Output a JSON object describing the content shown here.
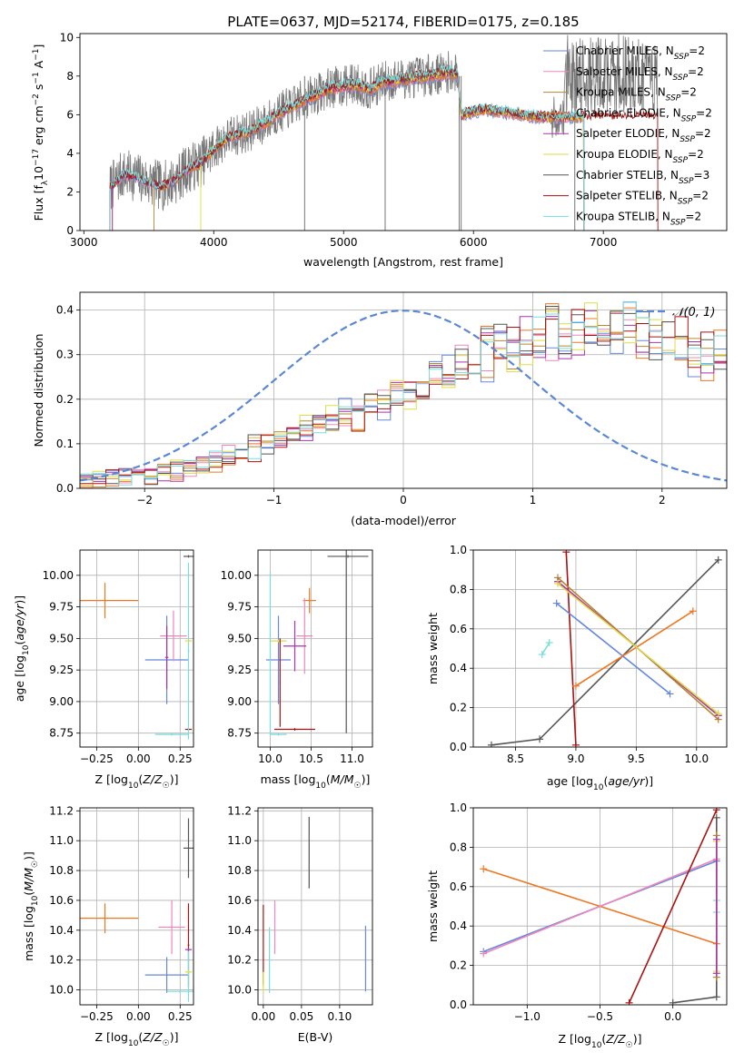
{
  "figure_title": "PLATE=0637, MJD=52174, FIBERID=0175, z=0.185",
  "models": [
    {
      "name": "Chabrier MILES",
      "nssp": "2",
      "color": "#6688dd"
    },
    {
      "name": "Salpeter MILES",
      "nssp": "2",
      "color": "#ee88bb"
    },
    {
      "name": "Kroupa MILES",
      "nssp": "2",
      "color": "#b8862e"
    },
    {
      "name": "Chabrier ELODIE",
      "nssp": "2",
      "color": "#ee7722"
    },
    {
      "name": "Salpeter ELODIE",
      "nssp": "2",
      "color": "#aa33aa"
    },
    {
      "name": "Kroupa ELODIE",
      "nssp": "2",
      "color": "#dddd44"
    },
    {
      "name": "Chabrier STELIB",
      "nssp": "3",
      "color": "#555555"
    },
    {
      "name": "Salpeter STELIB",
      "nssp": "2",
      "color": "#aa1111"
    },
    {
      "name": "Kroupa STELIB",
      "nssp": "2",
      "color": "#77dddd"
    }
  ],
  "chart_data": [
    {
      "id": "spectrum",
      "type": "line",
      "xlabel": "wavelength [Angstrom, rest frame]",
      "ylabel": "Flux [f_λ 10^-17 erg cm^-2 s^-1 A^-1]",
      "xlim": [
        2970,
        7950
      ],
      "ylim": [
        0,
        10.2
      ],
      "xticks": [
        3000,
        4000,
        5000,
        6000,
        7000
      ],
      "yticks": [
        0,
        2,
        4,
        6,
        8,
        10
      ],
      "legend_position": "top-right",
      "data_color": "#777777",
      "model_profile": [
        [
          3200,
          2.2
        ],
        [
          3300,
          2.9
        ],
        [
          3400,
          2.8
        ],
        [
          3500,
          2.5
        ],
        [
          3600,
          2.3
        ],
        [
          3700,
          2.6
        ],
        [
          3800,
          3.2
        ],
        [
          3900,
          3.5
        ],
        [
          4000,
          4.2
        ],
        [
          4100,
          4.8
        ],
        [
          4200,
          5.0
        ],
        [
          4300,
          5.2
        ],
        [
          4400,
          5.6
        ],
        [
          4500,
          6.1
        ],
        [
          4600,
          6.4
        ],
        [
          4700,
          6.8
        ],
        [
          4800,
          7.1
        ],
        [
          4900,
          7.4
        ],
        [
          5000,
          7.5
        ],
        [
          5100,
          7.6
        ],
        [
          5200,
          7.3
        ],
        [
          5300,
          7.7
        ],
        [
          5400,
          7.8
        ],
        [
          5500,
          7.9
        ],
        [
          5600,
          8.0
        ],
        [
          5700,
          8.1
        ],
        [
          5800,
          8.2
        ],
        [
          5880,
          8.1
        ],
        [
          5905,
          6.0
        ],
        [
          6000,
          6.2
        ],
        [
          6100,
          6.3
        ],
        [
          6200,
          6.2
        ],
        [
          6300,
          6.1
        ],
        [
          6400,
          6.0
        ],
        [
          6500,
          5.9
        ],
        [
          6600,
          5.9
        ],
        [
          6700,
          5.9
        ],
        [
          6800,
          5.9
        ]
      ],
      "model_ranges": [
        [
          3200,
          6850
        ],
        [
          3200,
          6850
        ],
        [
          3540,
          6850
        ],
        [
          3220,
          6850
        ],
        [
          3220,
          6850
        ],
        [
          3900,
          6850
        ],
        [
          3200,
          6850
        ],
        [
          3200,
          7420
        ],
        [
          3200,
          6850
        ]
      ]
    },
    {
      "id": "residuals",
      "type": "step",
      "xlabel": "(data-model)/error",
      "ylabel": "Normed distribution",
      "xlim": [
        -2.5,
        2.5
      ],
      "ylim": [
        0,
        0.44
      ],
      "xticks": [
        -2,
        -1,
        0,
        1,
        2
      ],
      "yticks": [
        0.0,
        0.1,
        0.2,
        0.3,
        0.4
      ],
      "gaussian_label": "𝒩(0, 1)",
      "gaussian_color": "#5a87d6",
      "bin_width": 0.1,
      "base_shape": [
        0.02,
        0.022,
        0.024,
        0.026,
        0.028,
        0.03,
        0.035,
        0.04,
        0.045,
        0.055,
        0.06,
        0.07,
        0.08,
        0.09,
        0.1,
        0.11,
        0.12,
        0.13,
        0.14,
        0.15,
        0.16,
        0.17,
        0.18,
        0.19,
        0.2,
        0.21,
        0.22,
        0.24,
        0.25,
        0.27,
        0.28,
        0.3,
        0.31,
        0.32,
        0.33,
        0.34,
        0.35,
        0.35,
        0.355,
        0.36,
        0.36,
        0.355,
        0.35,
        0.345,
        0.34,
        0.33,
        0.32,
        0.31,
        0.3,
        0.3,
        0.29,
        0.285,
        0.28,
        0.275,
        0.27,
        0.265,
        0.26,
        0.25,
        0.24,
        0.23,
        0.22,
        0.215,
        0.21,
        0.205,
        0.2,
        0.19,
        0.18,
        0.17,
        0.16,
        0.15
      ]
    },
    {
      "id": "age_vs_Z",
      "type": "errorbar",
      "xlabel": "Z [log10(Z/Z☉)]",
      "ylabel": "age  [log10(age/yr)]",
      "xlim": [
        -0.35,
        0.33
      ],
      "ylim": [
        8.64,
        10.2
      ],
      "xticks": [
        -0.25,
        0.0,
        0.25
      ],
      "xticklabels": [
        "−0.25",
        "0.00",
        "0.25"
      ],
      "yticks": [
        8.75,
        9.0,
        9.25,
        9.5,
        9.75,
        10.0
      ],
      "yticklabels": [
        "8.75",
        "9.00",
        "9.25",
        "9.50",
        "9.75",
        "10.00"
      ],
      "points": [
        {
          "model": 3,
          "x": -0.2,
          "y": 9.8,
          "xerr": 0.2,
          "yerr": 0.14
        },
        {
          "model": 0,
          "x": 0.17,
          "y": 9.33,
          "xerr": 0.13,
          "yerr": 0.35
        },
        {
          "model": 1,
          "x": 0.21,
          "y": 9.52,
          "xerr": 0.08,
          "yerr": 0.2
        },
        {
          "model": 4,
          "x": 0.17,
          "y": 9.35,
          "xerr": 0.01,
          "yerr": 0.25
        },
        {
          "model": 6,
          "x": 0.3,
          "y": 10.15,
          "xerr": 0.03,
          "yerr": 0.01
        },
        {
          "model": 7,
          "x": 0.3,
          "y": 8.78,
          "xerr": 0.02,
          "yerr": 0.01
        },
        {
          "model": 8,
          "x": 0.2,
          "y": 8.74,
          "xerr": 0.1,
          "yerr": 0.01
        },
        {
          "model": 8,
          "x": 0.3,
          "y": 9.4,
          "xerr": 0.005,
          "yerr": 0.7
        },
        {
          "model": 5,
          "x": 0.3,
          "y": 9.48,
          "xerr": 0.02,
          "yerr": 0.01
        }
      ]
    },
    {
      "id": "age_vs_mass",
      "type": "errorbar",
      "xlabel": "mass [log10(M/M☉)]",
      "ylabel": "",
      "xlim": [
        9.85,
        11.25
      ],
      "ylim": [
        8.64,
        10.2
      ],
      "xticks": [
        10.0,
        10.5,
        11.0
      ],
      "xticklabels": [
        "10.0",
        "10.5",
        "11.0"
      ],
      "yticks": [
        8.75,
        9.0,
        9.25,
        9.5,
        9.75,
        10.0
      ],
      "yticklabels": [
        "8.75",
        "9.00",
        "9.25",
        "9.50",
        "9.75",
        "10.00"
      ],
      "points": [
        {
          "model": 6,
          "x": 10.95,
          "y": 10.15,
          "xerr": 0.25,
          "yerr": 0.01
        },
        {
          "model": 6,
          "x": 10.93,
          "y": 9.5,
          "xerr": 0.005,
          "yerr": 0.75
        },
        {
          "model": 3,
          "x": 10.48,
          "y": 9.8,
          "xerr": 0.08,
          "yerr": 0.1
        },
        {
          "model": 0,
          "x": 10.1,
          "y": 9.33,
          "xerr": 0.15,
          "yerr": 0.35
        },
        {
          "model": 1,
          "x": 10.42,
          "y": 9.52,
          "xerr": 0.1,
          "yerr": 0.3
        },
        {
          "model": 4,
          "x": 10.3,
          "y": 9.44,
          "xerr": 0.14,
          "yerr": 0.2
        },
        {
          "model": 5,
          "x": 10.1,
          "y": 9.48,
          "xerr": 0.1,
          "yerr": 0.01
        },
        {
          "model": 7,
          "x": 10.3,
          "y": 8.78,
          "xerr": 0.25,
          "yerr": 0.01
        },
        {
          "model": 7,
          "x": 10.12,
          "y": 9.15,
          "xerr": 0.005,
          "yerr": 0.35
        },
        {
          "model": 8,
          "x": 10.1,
          "y": 8.74,
          "xerr": 0.1,
          "yerr": 0.01
        },
        {
          "model": 8,
          "x": 10.0,
          "y": 9.38,
          "xerr": 0.005,
          "yerr": 0.64
        }
      ]
    },
    {
      "id": "weight_vs_age",
      "type": "line",
      "xlabel": "age  [log10(age/yr)]",
      "ylabel": "mass weight",
      "xlim": [
        8.15,
        10.25
      ],
      "ylim": [
        0,
        1
      ],
      "xticks": [
        8.5,
        9.0,
        9.5,
        10.0
      ],
      "xticklabels": [
        "8.5",
        "9.0",
        "9.5",
        "10.0"
      ],
      "yticks": [
        0.0,
        0.2,
        0.4,
        0.6,
        0.8,
        1.0
      ],
      "yticklabels": [
        "0.0",
        "0.2",
        "0.4",
        "0.6",
        "0.8",
        "1.0"
      ],
      "series": [
        {
          "model": 6,
          "x": [
            8.3,
            8.7,
            10.18
          ],
          "y": [
            0.01,
            0.04,
            0.95
          ]
        },
        {
          "model": 7,
          "x": [
            8.92,
            9.0
          ],
          "y": [
            0.99,
            0.01
          ]
        },
        {
          "model": 0,
          "x": [
            8.84,
            9.78
          ],
          "y": [
            0.73,
            0.27
          ]
        },
        {
          "model": 3,
          "x": [
            9.0,
            9.97
          ],
          "y": [
            0.31,
            0.69
          ]
        },
        {
          "model": 1,
          "x": [
            8.85,
            10.18
          ],
          "y": [
            0.84,
            0.16
          ]
        },
        {
          "model": 2,
          "x": [
            8.85,
            10.18
          ],
          "y": [
            0.86,
            0.14
          ]
        },
        {
          "model": 4,
          "x": [
            8.85,
            10.18
          ],
          "y": [
            0.84,
            0.16
          ]
        },
        {
          "model": 5,
          "x": [
            8.85,
            10.18
          ],
          "y": [
            0.83,
            0.17
          ]
        },
        {
          "model": 8,
          "x": [
            8.72,
            8.78
          ],
          "y": [
            0.47,
            0.53
          ]
        }
      ]
    },
    {
      "id": "mass_vs_Z",
      "type": "errorbar",
      "xlabel": "Z [log10(Z/Z☉)]",
      "ylabel": "mass [log10(M/M☉)]",
      "xlim": [
        -0.35,
        0.33
      ],
      "ylim": [
        9.9,
        11.22
      ],
      "xticks": [
        -0.25,
        0.0,
        0.25
      ],
      "xticklabels": [
        "−0.25",
        "0.00",
        "0.25"
      ],
      "yticks": [
        10.0,
        10.2,
        10.4,
        10.6,
        10.8,
        11.0,
        11.2
      ],
      "yticklabels": [
        "10.0",
        "10.2",
        "10.4",
        "10.6",
        "10.8",
        "11.0",
        "11.2"
      ],
      "points": [
        {
          "model": 3,
          "x": -0.2,
          "y": 10.48,
          "xerr": 0.2,
          "yerr": 0.1
        },
        {
          "model": 0,
          "x": 0.17,
          "y": 10.1,
          "xerr": 0.13,
          "yerr": 0.12
        },
        {
          "model": 1,
          "x": 0.2,
          "y": 10.42,
          "xerr": 0.08,
          "yerr": 0.18
        },
        {
          "model": 6,
          "x": 0.3,
          "y": 10.95,
          "xerr": 0.03,
          "yerr": 0.2
        },
        {
          "model": 7,
          "x": 0.3,
          "y": 10.3,
          "xerr": 0.005,
          "yerr": 0.28
        },
        {
          "model": 8,
          "x": 0.25,
          "y": 9.99,
          "xerr": 0.08,
          "yerr": 0.01
        },
        {
          "model": 8,
          "x": 0.3,
          "y": 10.1,
          "xerr": 0.005,
          "yerr": 0.18
        },
        {
          "model": 4,
          "x": 0.3,
          "y": 10.27,
          "xerr": 0.02,
          "yerr": 0.01
        },
        {
          "model": 5,
          "x": 0.3,
          "y": 10.12,
          "xerr": 0.02,
          "yerr": 0.01
        }
      ]
    },
    {
      "id": "mass_vs_ebv",
      "type": "errorbar",
      "xlabel": "E(B-V)",
      "ylabel": "",
      "xlim": [
        -0.007,
        0.143
      ],
      "ylim": [
        9.9,
        11.22
      ],
      "xticks": [
        0.0,
        0.05,
        0.1
      ],
      "xticklabels": [
        "0.00",
        "0.05",
        "0.10"
      ],
      "yticks": [
        10.0,
        10.2,
        10.4,
        10.6,
        10.8,
        11.0,
        11.2
      ],
      "yticklabels": [
        "10.0",
        "10.2",
        "10.4",
        "10.6",
        "10.8",
        "11.0",
        "11.2"
      ],
      "points": [
        {
          "model": 6,
          "x": 0.06,
          "y": 10.92,
          "xerr": 0.0,
          "yerr": 0.24
        },
        {
          "model": 0,
          "x": 0.134,
          "y": 10.21,
          "xerr": 0.0,
          "yerr": 0.22
        },
        {
          "model": 1,
          "x": 0.015,
          "y": 10.42,
          "xerr": 0.0,
          "yerr": 0.18
        },
        {
          "model": 8,
          "x": 0.008,
          "y": 10.2,
          "xerr": 0.0,
          "yerr": 0.22
        },
        {
          "model": 7,
          "x": 0.0,
          "y": 10.3,
          "xerr": 0.0,
          "yerr": 0.27
        },
        {
          "model": 5,
          "x": 0.0,
          "y": 10.05,
          "xerr": 0.0,
          "yerr": 0.07
        }
      ]
    },
    {
      "id": "weight_vs_Z",
      "type": "line",
      "xlabel": "Z [log10(Z/Z☉)]",
      "ylabel": "mass weight",
      "xlim": [
        -1.37,
        0.37
      ],
      "ylim": [
        0,
        1
      ],
      "xticks": [
        -1.0,
        -0.5,
        0.0
      ],
      "xticklabels": [
        "−1.0",
        "−0.5",
        "0.0"
      ],
      "yticks": [
        0.0,
        0.2,
        0.4,
        0.6,
        0.8,
        1.0
      ],
      "yticklabels": [
        "0.0",
        "0.2",
        "0.4",
        "0.6",
        "0.8",
        "1.0"
      ],
      "series": [
        {
          "model": 3,
          "x": [
            -1.3,
            0.3
          ],
          "y": [
            0.69,
            0.31
          ]
        },
        {
          "model": 0,
          "x": [
            -1.3,
            0.3
          ],
          "y": [
            0.27,
            0.73
          ]
        },
        {
          "model": 1,
          "x": [
            -1.3,
            0.3
          ],
          "y": [
            0.26,
            0.74
          ]
        },
        {
          "model": 7,
          "x": [
            -0.3,
            0.3
          ],
          "y": [
            0.01,
            0.99
          ]
        },
        {
          "model": 6,
          "x": [
            0.0,
            0.3,
            0.3
          ],
          "y": [
            0.01,
            0.04,
            0.95
          ]
        },
        {
          "model": 8,
          "x": [
            0.3,
            0.3
          ],
          "y": [
            0.47,
            0.53
          ]
        },
        {
          "model": 2,
          "x": [
            0.3,
            0.3
          ],
          "y": [
            0.14,
            0.86
          ]
        },
        {
          "model": 5,
          "x": [
            0.3,
            0.3
          ],
          "y": [
            0.17,
            0.83
          ]
        },
        {
          "model": 4,
          "x": [
            0.3,
            0.3
          ],
          "y": [
            0.16,
            0.84
          ]
        }
      ]
    }
  ]
}
